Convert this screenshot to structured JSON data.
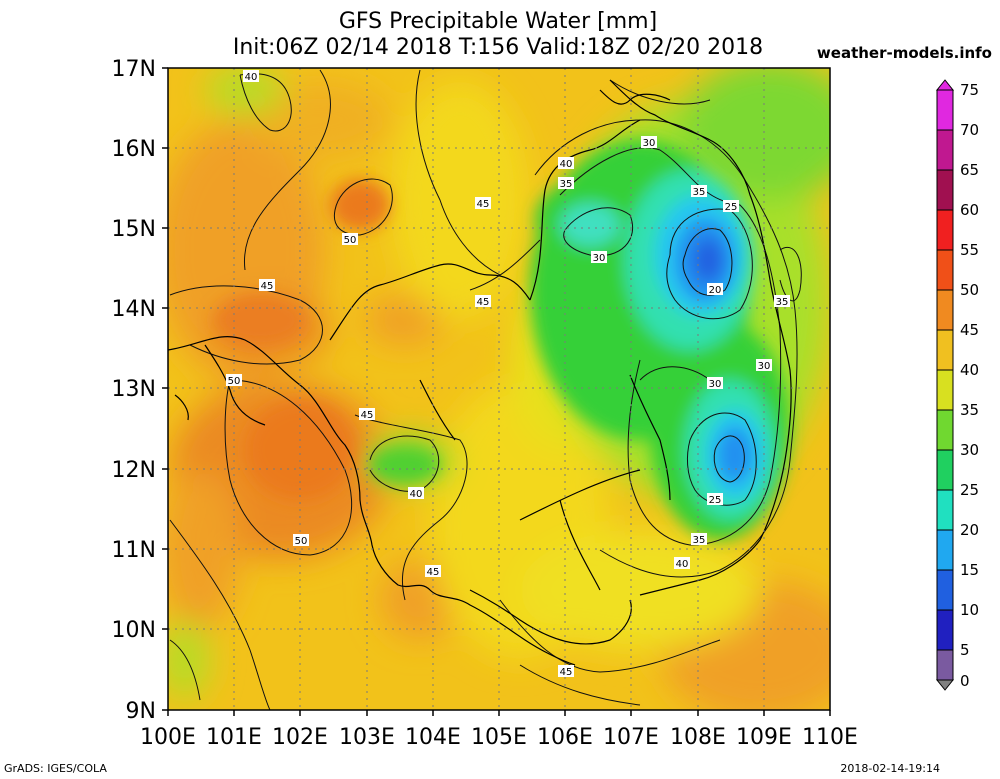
{
  "header": {
    "title": "GFS Precipitable Water [mm]",
    "subtitle": "Init:06Z 02/14 2018 T:156 Valid:18Z 02/20 2018",
    "site": "weather-models.info"
  },
  "footer": {
    "software": "GrADS: IGES/COLA",
    "timestamp": "2018-02-14-19:14"
  },
  "axes": {
    "lat_labels": [
      "17N",
      "16N",
      "15N",
      "14N",
      "13N",
      "12N",
      "11N",
      "10N",
      "9N"
    ],
    "lon_labels": [
      "100E",
      "101E",
      "102E",
      "103E",
      "104E",
      "105E",
      "106E",
      "107E",
      "108E",
      "109E",
      "110E"
    ]
  },
  "colorbar": {
    "labels": [
      "75",
      "70",
      "65",
      "60",
      "55",
      "50",
      "45",
      "40",
      "35",
      "30",
      "25",
      "20",
      "15",
      "10",
      "5",
      "0"
    ],
    "colors": [
      "#e028e0",
      "#c01890",
      "#a01050",
      "#c02020",
      "#f03010",
      "#f06018",
      "#f0a030",
      "#f0d020",
      "#b0e020",
      "#30d030",
      "#20e0a0",
      "#20c8f0",
      "#2090f0",
      "#2050e0",
      "#3020c0",
      "#4a2080",
      "#808080"
    ]
  },
  "contour_labels": [
    {
      "text": "40"
    },
    {
      "text": "30"
    },
    {
      "text": "40"
    },
    {
      "text": "35"
    },
    {
      "text": "35"
    },
    {
      "text": "25"
    },
    {
      "text": "50"
    },
    {
      "text": "45"
    },
    {
      "text": "30"
    },
    {
      "text": "20"
    },
    {
      "text": "45"
    },
    {
      "text": "45"
    },
    {
      "text": "35"
    },
    {
      "text": "50"
    },
    {
      "text": "30"
    },
    {
      "text": "30"
    },
    {
      "text": "45"
    },
    {
      "text": "40"
    },
    {
      "text": "25"
    },
    {
      "text": "50"
    },
    {
      "text": "35"
    },
    {
      "text": "45"
    },
    {
      "text": "40"
    },
    {
      "text": "45"
    }
  ]
}
